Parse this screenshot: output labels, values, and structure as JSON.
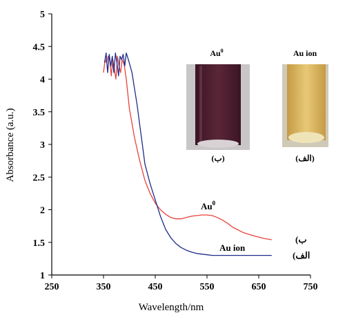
{
  "chart_data": {
    "type": "line",
    "xlabel": "Wavelength/nm",
    "ylabel": "Absorbance (a.u.)",
    "xlim": [
      250,
      750
    ],
    "ylim": [
      1,
      5
    ],
    "x_ticks": [
      250,
      350,
      450,
      550,
      650,
      750
    ],
    "y_ticks": [
      1,
      1.5,
      2,
      2.5,
      3,
      3.5,
      4,
      4.5,
      5
    ],
    "x_tick_labels": [
      "250",
      "350",
      "450",
      "550",
      "650",
      "750"
    ],
    "y_tick_labels": [
      "1",
      "1.5",
      "2",
      "2.5",
      "3",
      "3.5",
      "4",
      "4.5",
      "5"
    ],
    "series": [
      {
        "color": "#e8423c",
        "x": [
          350,
          353,
          356,
          359,
          362,
          365,
          368,
          371,
          374,
          377,
          380,
          383,
          386,
          390,
          394,
          400,
          410,
          420,
          430,
          440,
          450,
          460,
          470,
          480,
          490,
          500,
          510,
          520,
          530,
          540,
          550,
          560,
          570,
          580,
          590,
          600,
          620,
          640,
          660,
          675
        ],
        "y": [
          4.1,
          4.3,
          4.25,
          4.35,
          4.3,
          4.05,
          4.3,
          4.15,
          4.0,
          4.35,
          4.2,
          4.1,
          4.3,
          4.22,
          4.0,
          3.55,
          3.1,
          2.75,
          2.45,
          2.25,
          2.1,
          2.0,
          1.93,
          1.88,
          1.86,
          1.86,
          1.88,
          1.9,
          1.91,
          1.92,
          1.92,
          1.91,
          1.88,
          1.84,
          1.79,
          1.73,
          1.65,
          1.6,
          1.56,
          1.54
        ]
      },
      {
        "color": "#1f2a8a",
        "x": [
          352,
          355,
          358,
          361,
          364,
          367,
          370,
          373,
          376,
          379,
          382,
          385,
          388,
          391,
          394,
          398,
          405,
          410,
          415,
          420,
          425,
          430,
          440,
          450,
          460,
          470,
          480,
          490,
          500,
          510,
          520,
          530,
          540,
          550,
          560,
          570,
          580,
          600,
          620,
          640,
          660,
          675
        ],
        "y": [
          4.25,
          4.4,
          4.1,
          4.38,
          4.2,
          4.35,
          4.1,
          4.4,
          4.25,
          4.05,
          4.35,
          4.3,
          4.38,
          4.2,
          4.4,
          4.3,
          4.1,
          3.85,
          3.6,
          3.3,
          3.0,
          2.7,
          2.4,
          2.15,
          1.9,
          1.7,
          1.57,
          1.48,
          1.42,
          1.38,
          1.35,
          1.33,
          1.32,
          1.31,
          1.3,
          1.3,
          1.3,
          1.3,
          1.3,
          1.3,
          1.3,
          1.3
        ]
      }
    ],
    "annotations": {
      "au0_curve_label": "Au",
      "au0_curve_sup": "0",
      "au_ion_curve_label": "Au ion",
      "legend_b": "(ب",
      "legend_alef": "(الف"
    },
    "photos": {
      "left_title": "Au",
      "left_title_sup": "0",
      "left_caption": "(ب)",
      "left_color": "#4a1f2e",
      "right_title": "Au ion",
      "right_caption": "(الف)",
      "right_color": "#d9b65e"
    }
  }
}
